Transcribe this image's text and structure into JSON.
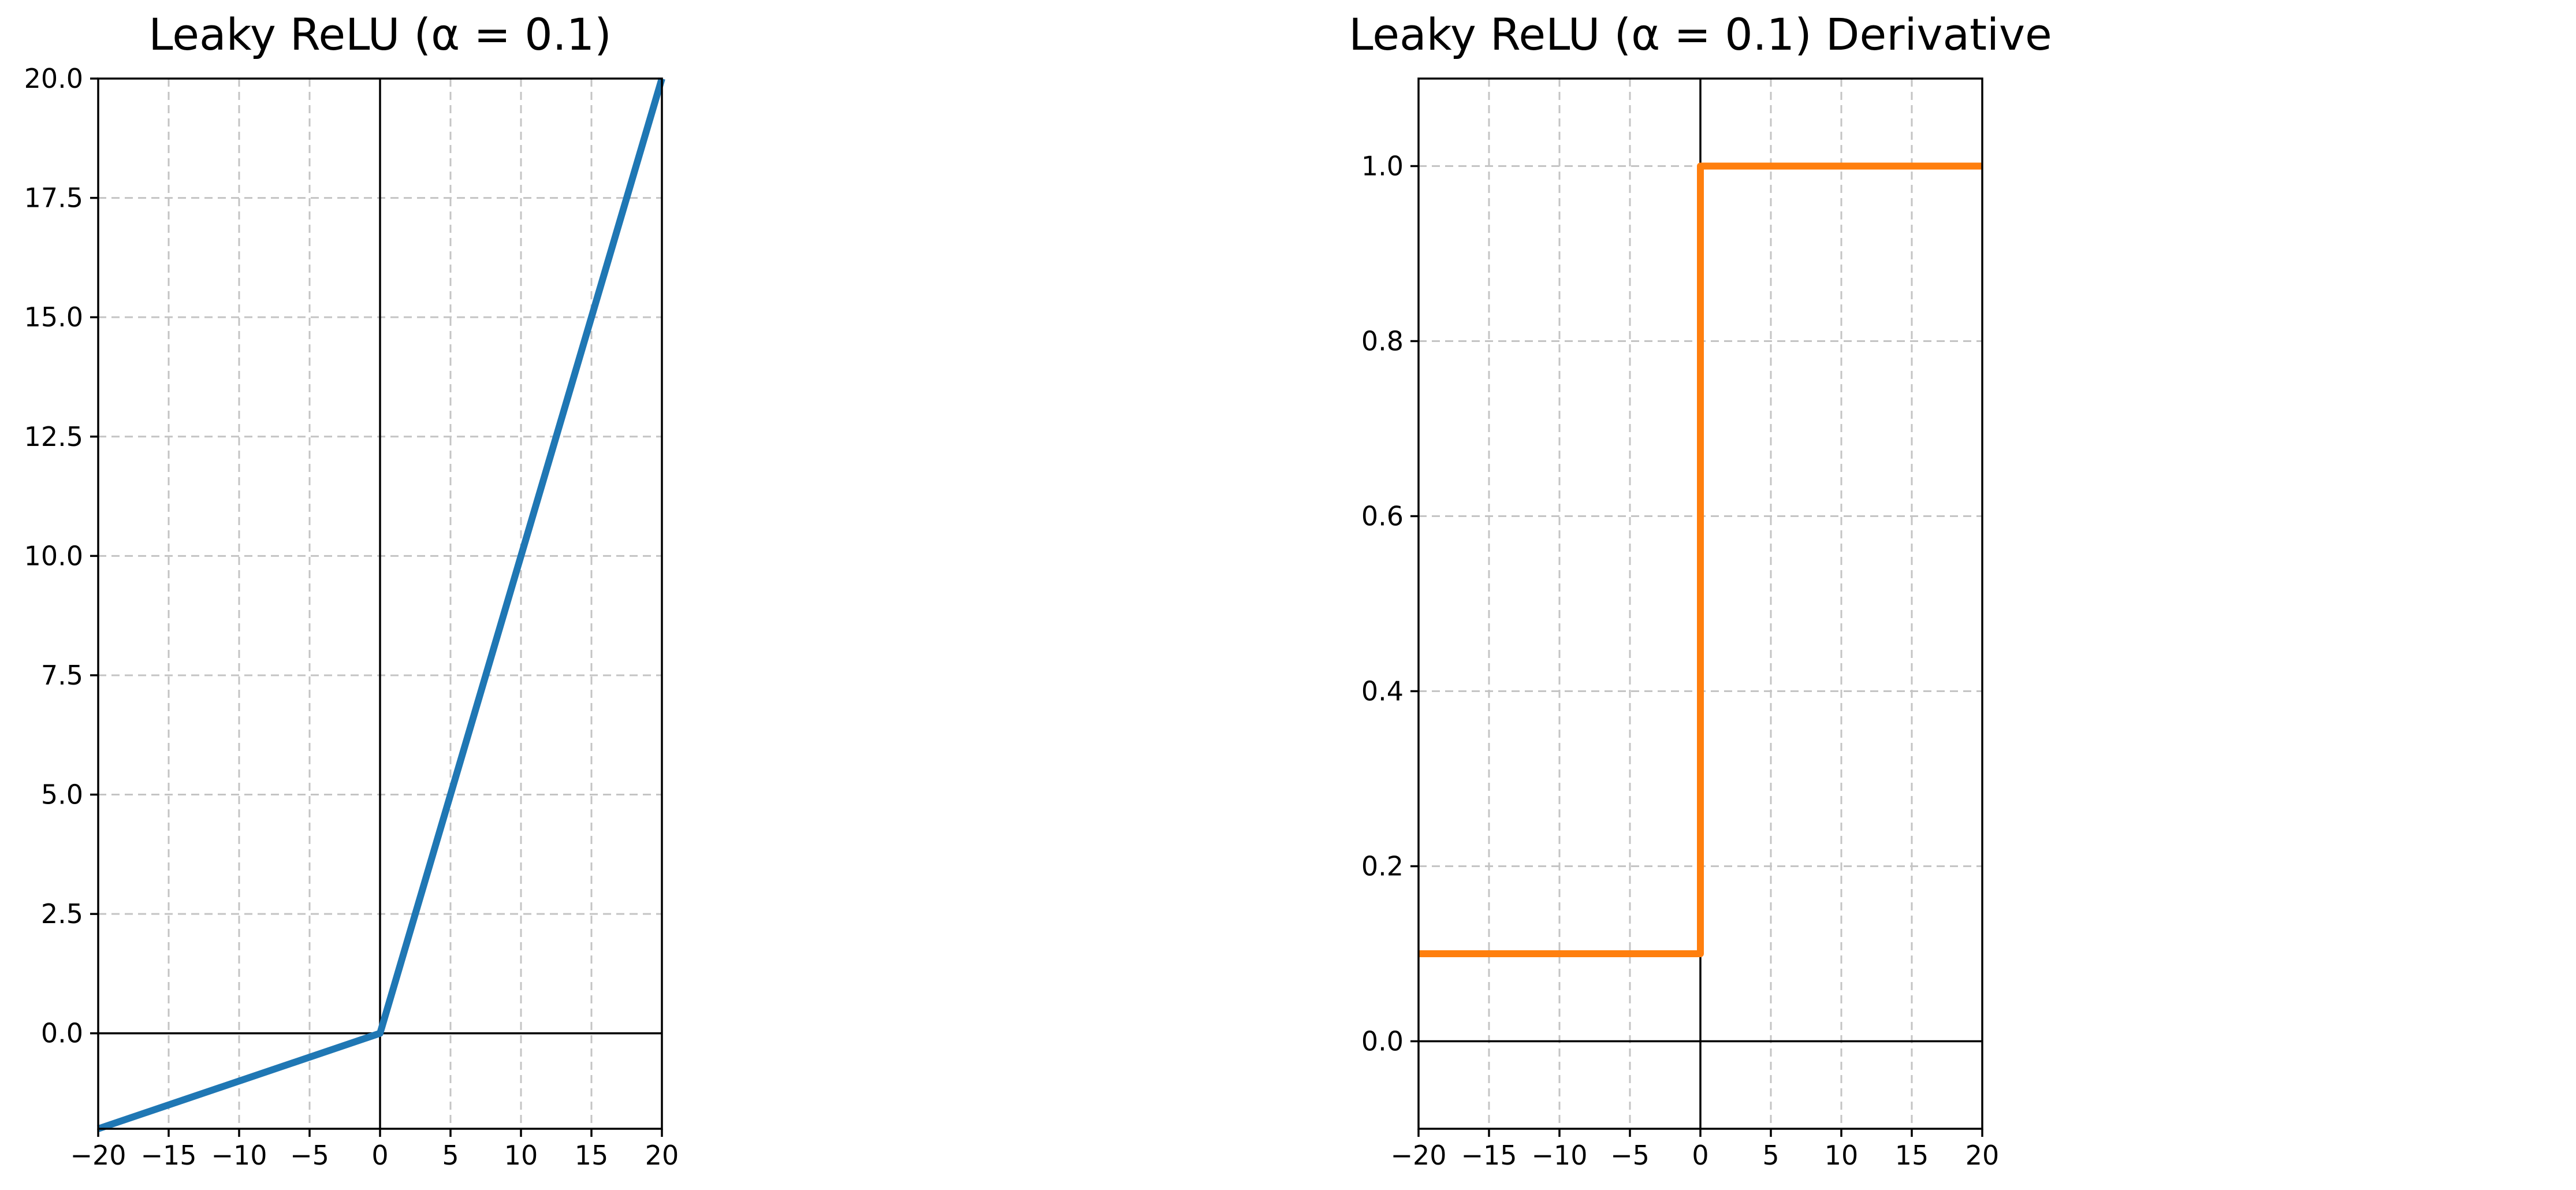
{
  "chart_data": [
    {
      "type": "line",
      "title": "Leaky ReLU (α = 0.1)",
      "xlabel": "",
      "ylabel": "",
      "xlim": [
        -20,
        20
      ],
      "ylim": [
        -2,
        20
      ],
      "xticks": [
        -20,
        -15,
        -10,
        -5,
        0,
        5,
        10,
        15,
        20
      ],
      "xtick_labels": [
        "−20",
        "−15",
        "−10",
        "−5",
        "0",
        "5",
        "10",
        "15",
        "20"
      ],
      "yticks": [
        0,
        2.5,
        5,
        7.5,
        10,
        12.5,
        15,
        17.5,
        20
      ],
      "ytick_labels": [
        "0.0",
        "2.5",
        "5.0",
        "7.5",
        "10.0",
        "12.5",
        "15.0",
        "17.5",
        "20.0"
      ],
      "grid": true,
      "zero_lines": true,
      "series": [
        {
          "color": "#1f77b4",
          "x": [
            -20,
            0,
            20
          ],
          "y": [
            -2,
            0,
            20
          ]
        }
      ]
    },
    {
      "type": "line",
      "title": "Leaky ReLU (α = 0.1) Derivative",
      "xlabel": "",
      "ylabel": "",
      "xlim": [
        -20,
        20
      ],
      "ylim": [
        -0.1,
        1.1
      ],
      "xticks": [
        -20,
        -15,
        -10,
        -5,
        0,
        5,
        10,
        15,
        20
      ],
      "xtick_labels": [
        "−20",
        "−15",
        "−10",
        "−5",
        "0",
        "5",
        "10",
        "15",
        "20"
      ],
      "yticks": [
        0,
        0.2,
        0.4,
        0.6,
        0.8,
        1.0
      ],
      "ytick_labels": [
        "0.0",
        "0.2",
        "0.4",
        "0.6",
        "0.8",
        "1.0"
      ],
      "grid": true,
      "zero_lines": true,
      "series": [
        {
          "color": "#ff7f0e",
          "x": [
            -20,
            0,
            0,
            20
          ],
          "y": [
            0.1,
            0.1,
            1,
            1
          ]
        }
      ]
    }
  ]
}
